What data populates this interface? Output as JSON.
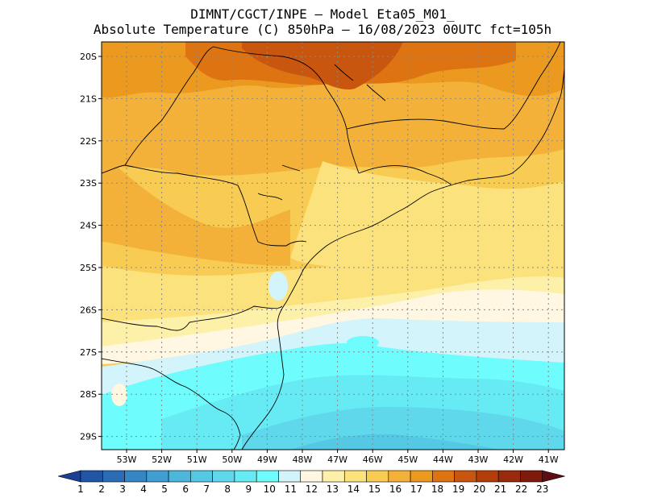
{
  "title": {
    "line1": "DIMNT/CGCT/INPE –  Model Eta05_M01_",
    "line2": "Absolute Temperature (C) 850hPa –  16/08/2023 00UTC fct=105h"
  },
  "map": {
    "lat_labels": [
      "20S",
      "21S",
      "22S",
      "23S",
      "24S",
      "25S",
      "26S",
      "27S",
      "28S",
      "29S"
    ],
    "lon_labels": [
      "53W",
      "52W",
      "51W",
      "50W",
      "49W",
      "48W",
      "47W",
      "46W",
      "45W",
      "44W",
      "43W",
      "42W",
      "41W"
    ]
  },
  "colorbar": {
    "ticks": [
      "1",
      "2",
      "3",
      "4",
      "5",
      "6",
      "7",
      "8",
      "9",
      "10",
      "11",
      "12",
      "13",
      "14",
      "15",
      "16",
      "17",
      "18",
      "19",
      "20",
      "21",
      "22",
      "23"
    ],
    "colors": [
      "#1b3f92",
      "#2155a6",
      "#2a6db6",
      "#3486c4",
      "#3f9fd0",
      "#4cb7da",
      "#55c8e4",
      "#5fd8ec",
      "#66ebf5",
      "#6efcfc",
      "#d4f4fb",
      "#fff7e2",
      "#fdf0a8",
      "#fbe27c",
      "#f8cb52",
      "#f4b13a",
      "#eb9a1f",
      "#de7312",
      "#c9560e",
      "#b33e0c",
      "#9a2a0c",
      "#7f1a0c",
      "#5c0e12"
    ]
  }
}
